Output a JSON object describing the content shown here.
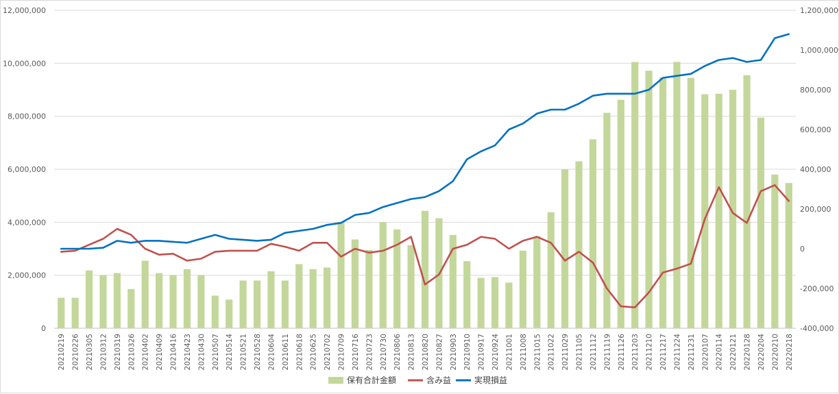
{
  "chart_data": {
    "type": "bar",
    "categories": [
      "20210219",
      "20210226",
      "20210305",
      "20210312",
      "20210319",
      "20210326",
      "20210402",
      "20210409",
      "20210416",
      "20210423",
      "20210430",
      "20210507",
      "20210514",
      "20210521",
      "20210528",
      "20210604",
      "20210611",
      "20210618",
      "20210625",
      "20210702",
      "20210709",
      "20210716",
      "20210723",
      "20210730",
      "20210806",
      "20210813",
      "20210820",
      "20210827",
      "20210903",
      "20210910",
      "20210917",
      "20210924",
      "20211001",
      "20211008",
      "20211015",
      "20211022",
      "20211029",
      "20211105",
      "20211112",
      "20211119",
      "20211126",
      "20211203",
      "20211210",
      "20211217",
      "20211224",
      "20211231",
      "20220107",
      "20220114",
      "20220121",
      "20220128",
      "20220204",
      "20220210",
      "20220218"
    ],
    "y_left": {
      "ylim": [
        0,
        12000000
      ],
      "ticks": [
        0,
        2000000,
        4000000,
        6000000,
        8000000,
        10000000,
        12000000
      ],
      "tick_labels": [
        "0",
        "2,000,000",
        "4,000,000",
        "6,000,000",
        "8,000,000",
        "10,000,000",
        "12,000,000"
      ]
    },
    "y_right": {
      "ylim": [
        -400000,
        1200000
      ],
      "ticks": [
        -400000,
        -200000,
        0,
        200000,
        400000,
        600000,
        800000,
        1000000,
        1200000
      ],
      "tick_labels": [
        "-400,000",
        "-200,000",
        "0",
        "200,000",
        "400,000",
        "600,000",
        "800,000",
        "1,000,000",
        "1,200,000"
      ],
      "negative_color": "#ff0000"
    },
    "grid": "horizontal",
    "legend_position": "bottom",
    "series": [
      {
        "name": "保有合計金額",
        "type": "bar",
        "axis": "left",
        "color": "#c4d79b",
        "values": [
          1150000,
          1150000,
          2180000,
          2000000,
          2080000,
          1480000,
          2550000,
          2080000,
          2000000,
          2230000,
          2000000,
          1230000,
          1080000,
          1800000,
          1800000,
          2150000,
          1800000,
          2420000,
          2230000,
          2290000,
          4000000,
          3350000,
          2950000,
          4000000,
          3730000,
          3130000,
          4430000,
          4150000,
          3520000,
          2530000,
          1900000,
          1930000,
          1720000,
          2930000,
          3470000,
          4380000,
          6000000,
          6300000,
          7130000,
          8130000,
          8620000,
          10050000,
          9720000,
          9470000,
          10050000,
          9450000,
          8830000,
          8850000,
          9000000,
          9550000,
          7950000,
          5800000,
          5480000
        ]
      },
      {
        "name": "含み益",
        "type": "line",
        "axis": "right",
        "color": "#c0504d",
        "values": [
          -15000,
          -10000,
          20000,
          50000,
          100000,
          70000,
          0,
          -30000,
          -25000,
          -60000,
          -50000,
          -15000,
          -10000,
          -10000,
          -10000,
          25000,
          10000,
          -10000,
          30000,
          30000,
          -40000,
          0,
          -20000,
          -10000,
          20000,
          60000,
          -180000,
          -130000,
          0,
          20000,
          60000,
          50000,
          0,
          40000,
          60000,
          30000,
          -60000,
          -15000,
          -70000,
          -200000,
          -290000,
          -295000,
          -220000,
          -120000,
          -100000,
          -75000,
          150000,
          310000,
          180000,
          130000,
          290000,
          320000,
          240000
        ]
      },
      {
        "name": "実現損益",
        "type": "line",
        "axis": "right",
        "color": "#0070c0",
        "values": [
          0,
          0,
          0,
          5000,
          40000,
          30000,
          40000,
          40000,
          35000,
          30000,
          50000,
          70000,
          50000,
          45000,
          40000,
          45000,
          80000,
          90000,
          100000,
          120000,
          130000,
          170000,
          180000,
          210000,
          230000,
          250000,
          260000,
          290000,
          340000,
          450000,
          490000,
          520000,
          600000,
          630000,
          680000,
          700000,
          700000,
          730000,
          770000,
          780000,
          780000,
          780000,
          800000,
          860000,
          870000,
          880000,
          920000,
          950000,
          960000,
          940000,
          950000,
          1060000,
          1080000
        ]
      }
    ]
  }
}
